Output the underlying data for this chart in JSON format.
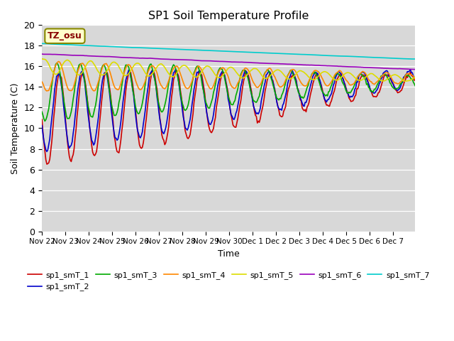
{
  "title": "SP1 Soil Temperature Profile",
  "xlabel": "Time",
  "ylabel": "Soil Temperature (C)",
  "ylim": [
    0,
    20
  ],
  "bg_color": "#d8d8d8",
  "fig_color": "#ffffff",
  "annotation_text": "TZ_osu",
  "annotation_color": "#880000",
  "annotation_bg": "#ffffcc",
  "annotation_border": "#888800",
  "legend_entries": [
    "sp1_smT_1",
    "sp1_smT_2",
    "sp1_smT_3",
    "sp1_smT_4",
    "sp1_smT_5",
    "sp1_smT_6",
    "sp1_smT_7"
  ],
  "line_colors": [
    "#cc0000",
    "#0000cc",
    "#00aa00",
    "#ff8800",
    "#dddd00",
    "#9900bb",
    "#00cccc"
  ],
  "x_tick_labels": [
    "Nov 22",
    "Nov 23",
    "Nov 24",
    "Nov 25",
    "Nov 26",
    "Nov 27",
    "Nov 28",
    "Nov 29",
    "Nov 30",
    "Dec 1",
    "Dec 2",
    "Dec 3",
    "Dec 4",
    "Dec 5",
    "Dec 6",
    "Dec 7"
  ],
  "x_tick_positions": [
    0,
    24,
    48,
    72,
    96,
    120,
    144,
    168,
    192,
    216,
    240,
    264,
    288,
    312,
    336,
    360
  ],
  "n_hours": 384,
  "trend_start": [
    10.8,
    11.5,
    13.5,
    15.0,
    16.0,
    17.2,
    18.2
  ],
  "trend_end": [
    14.5,
    14.8,
    14.5,
    14.8,
    14.8,
    15.7,
    16.7
  ],
  "amp_start": [
    4.5,
    3.8,
    2.8,
    1.5,
    0.8,
    0.3,
    0.05
  ],
  "amp_end": [
    1.5,
    1.5,
    1.2,
    0.5,
    0.3,
    0.1,
    0.05
  ],
  "phase_shift": [
    0.0,
    0.3,
    0.7,
    1.2,
    1.8,
    0.0,
    0.0
  ]
}
